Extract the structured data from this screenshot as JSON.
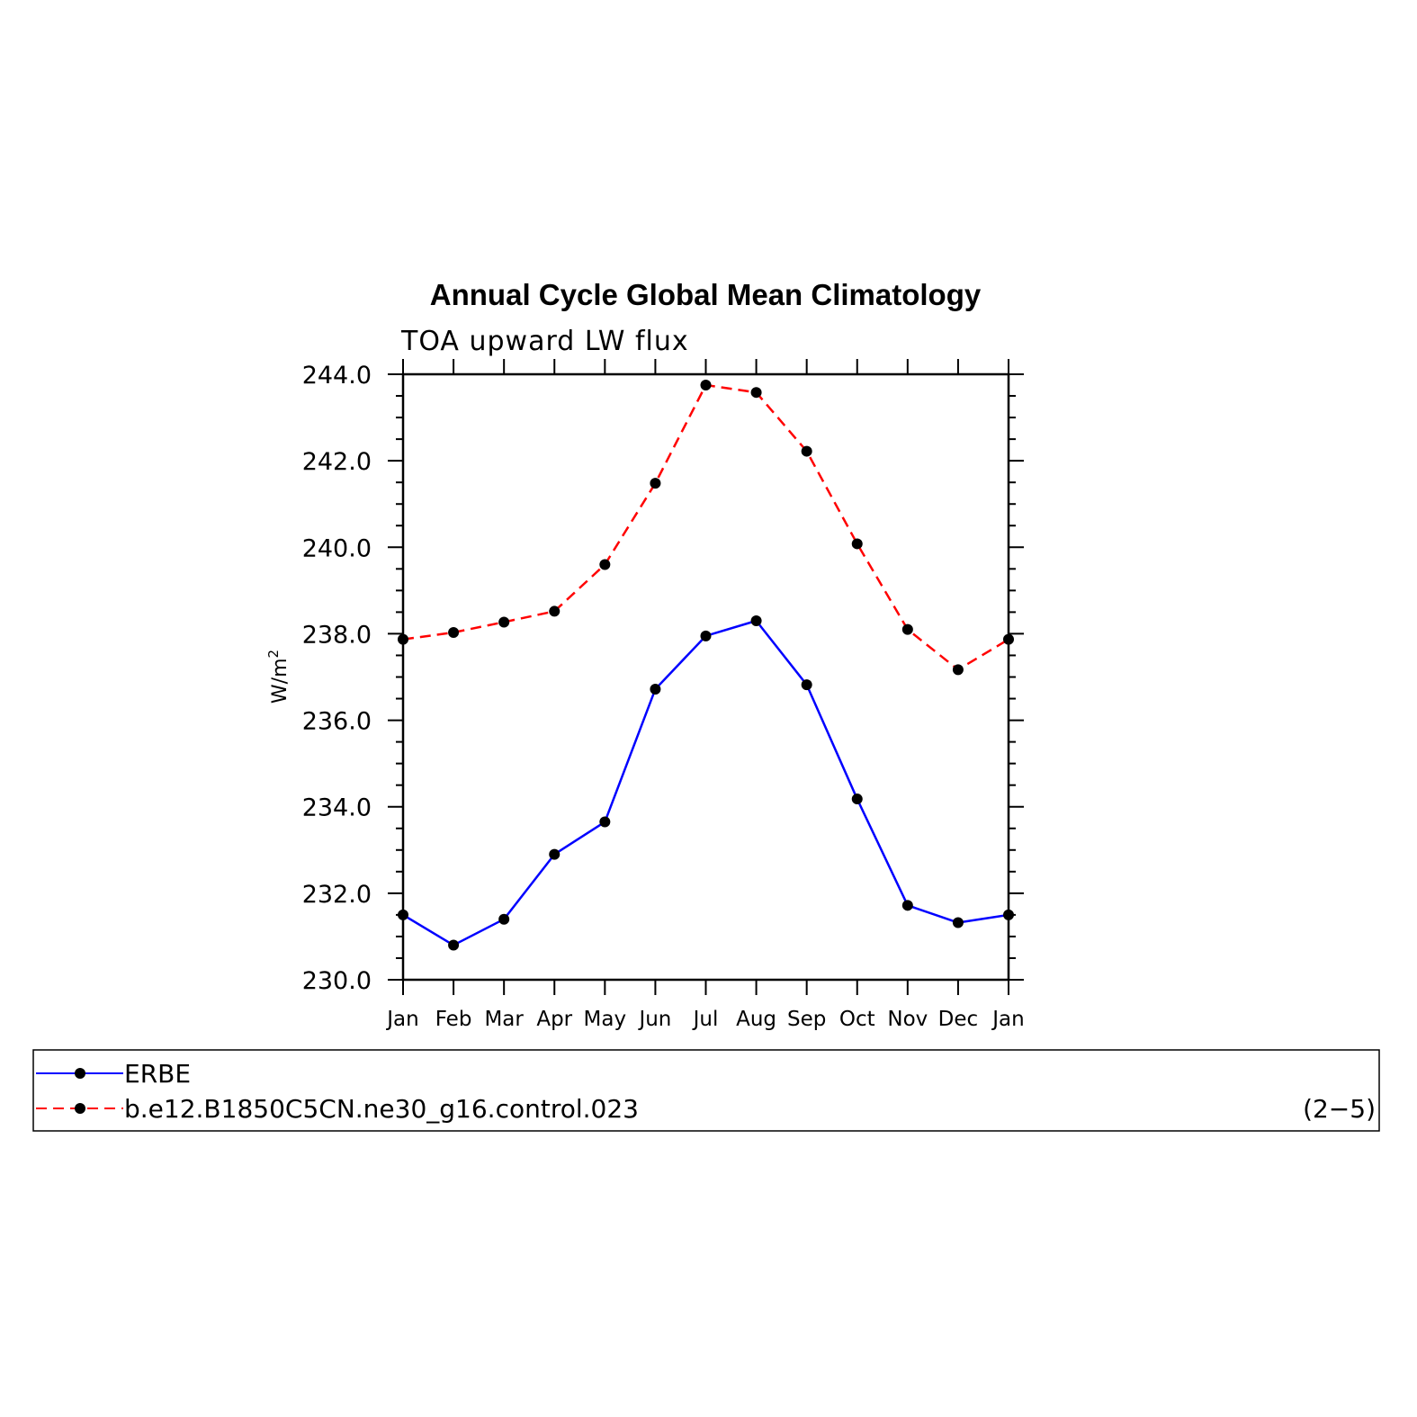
{
  "chart_data": {
    "type": "line",
    "title": "Annual Cycle Global Mean Climatology",
    "subtitle": "TOA upward LW flux",
    "ylabel": "W/m",
    "ylabel_sup": "2",
    "ylim": [
      230.0,
      244.0
    ],
    "yticks": [
      "230.0",
      "232.0",
      "234.0",
      "236.0",
      "238.0",
      "240.0",
      "242.0",
      "244.0"
    ],
    "categories": [
      "Jan",
      "Feb",
      "Mar",
      "Apr",
      "May",
      "Jun",
      "Jul",
      "Aug",
      "Sep",
      "Oct",
      "Nov",
      "Dec",
      "Jan"
    ],
    "series": [
      {
        "name": "ERBE",
        "color": "#0000ff",
        "dash": "solid",
        "values": [
          231.5,
          230.8,
          231.4,
          232.9,
          233.65,
          236.72,
          237.95,
          238.3,
          236.82,
          234.18,
          231.72,
          231.32,
          231.5
        ]
      },
      {
        "name": "b.e12.B1850C5CN.ne30_g16.control.023",
        "color": "#ff0000",
        "dash": "dashed",
        "values": [
          237.87,
          238.03,
          238.27,
          238.52,
          239.6,
          241.48,
          243.75,
          243.58,
          242.22,
          240.08,
          238.1,
          237.17,
          237.87
        ]
      }
    ],
    "grid": false,
    "legend_position": "bottom",
    "panel_id": "(2−5)"
  }
}
